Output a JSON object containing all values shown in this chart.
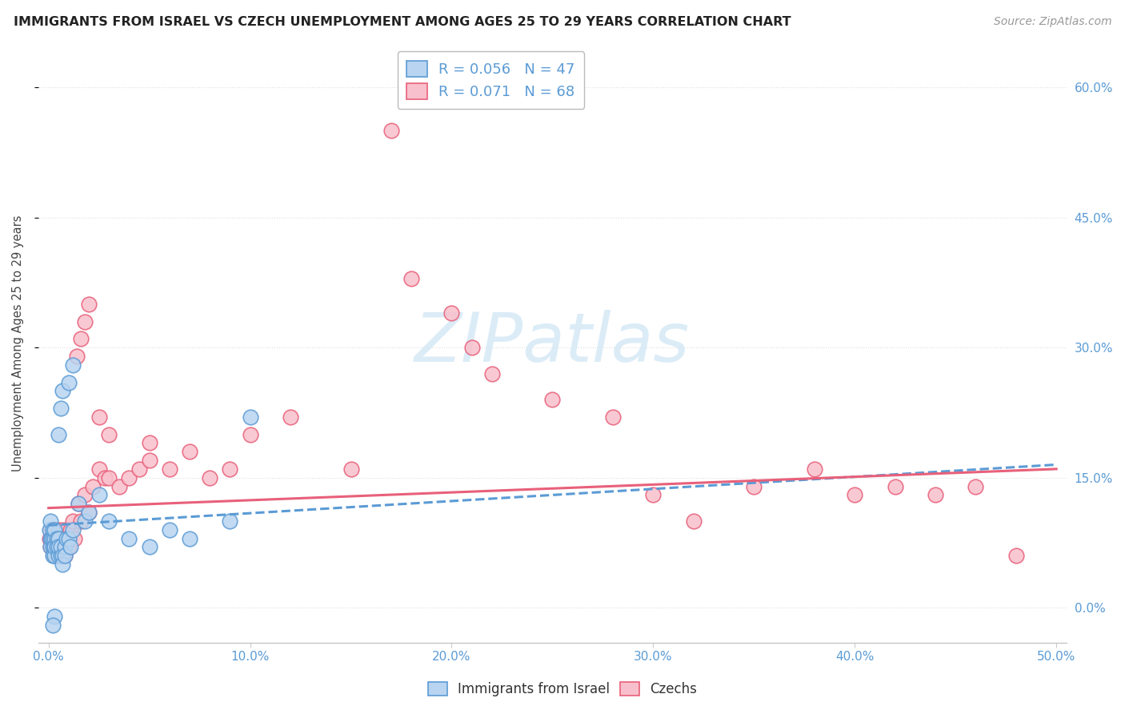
{
  "title": "IMMIGRANTS FROM ISRAEL VS CZECH UNEMPLOYMENT AMONG AGES 25 TO 29 YEARS CORRELATION CHART",
  "source": "Source: ZipAtlas.com",
  "ylabel": "Unemployment Among Ages 25 to 29 years",
  "xlim": [
    -0.005,
    0.505
  ],
  "ylim": [
    -0.04,
    0.65
  ],
  "xtick_vals": [
    0.0,
    0.1,
    0.2,
    0.3,
    0.4,
    0.5
  ],
  "ytick_vals": [
    0.0,
    0.15,
    0.3,
    0.45,
    0.6
  ],
  "blue_face": "#b8d4f0",
  "blue_edge": "#5b9bd5",
  "pink_face": "#f8c0cc",
  "pink_edge": "#e8607a",
  "blue_trend_color": "#5b9bd5",
  "pink_trend_color": "#e8607a",
  "tick_label_color": "#5b9bd5",
  "watermark_color": "#cde5f5",
  "title_color": "#222222",
  "source_color": "#999999",
  "grid_color": "#dedede",
  "legend_edge_color": "#bbbbbb",
  "r_blue": 0.056,
  "n_blue": 47,
  "r_pink": 0.071,
  "n_pink": 68,
  "blue_trend_start_y": 0.095,
  "blue_trend_end_y": 0.165,
  "pink_trend_start_y": 0.115,
  "pink_trend_end_y": 0.16,
  "blue_x": [
    0.0005,
    0.001,
    0.001,
    0.001,
    0.0015,
    0.002,
    0.002,
    0.002,
    0.002,
    0.003,
    0.003,
    0.003,
    0.003,
    0.003,
    0.004,
    0.004,
    0.005,
    0.005,
    0.005,
    0.006,
    0.006,
    0.007,
    0.007,
    0.008,
    0.008,
    0.009,
    0.01,
    0.011,
    0.012,
    0.015,
    0.018,
    0.02,
    0.025,
    0.03,
    0.04,
    0.05,
    0.06,
    0.07,
    0.09,
    0.1,
    0.005,
    0.006,
    0.007,
    0.01,
    0.012,
    0.003,
    0.002
  ],
  "blue_y": [
    0.09,
    0.08,
    0.07,
    0.1,
    0.08,
    0.07,
    0.09,
    0.06,
    0.08,
    0.07,
    0.06,
    0.08,
    0.09,
    0.07,
    0.08,
    0.07,
    0.06,
    0.08,
    0.07,
    0.06,
    0.07,
    0.06,
    0.05,
    0.07,
    0.06,
    0.08,
    0.08,
    0.07,
    0.09,
    0.12,
    0.1,
    0.11,
    0.13,
    0.1,
    0.08,
    0.07,
    0.09,
    0.08,
    0.1,
    0.22,
    0.2,
    0.23,
    0.25,
    0.26,
    0.28,
    -0.01,
    -0.02
  ],
  "pink_x": [
    0.0005,
    0.001,
    0.001,
    0.002,
    0.002,
    0.002,
    0.003,
    0.003,
    0.003,
    0.004,
    0.004,
    0.005,
    0.005,
    0.005,
    0.006,
    0.006,
    0.007,
    0.007,
    0.008,
    0.008,
    0.009,
    0.01,
    0.01,
    0.011,
    0.012,
    0.013,
    0.015,
    0.016,
    0.018,
    0.02,
    0.022,
    0.025,
    0.028,
    0.03,
    0.035,
    0.04,
    0.045,
    0.05,
    0.06,
    0.07,
    0.08,
    0.09,
    0.1,
    0.12,
    0.15,
    0.17,
    0.18,
    0.2,
    0.21,
    0.22,
    0.25,
    0.28,
    0.3,
    0.32,
    0.35,
    0.38,
    0.4,
    0.42,
    0.44,
    0.46,
    0.014,
    0.016,
    0.018,
    0.02,
    0.025,
    0.03,
    0.05,
    0.48
  ],
  "pink_y": [
    0.08,
    0.09,
    0.07,
    0.08,
    0.07,
    0.09,
    0.07,
    0.08,
    0.06,
    0.09,
    0.07,
    0.08,
    0.07,
    0.09,
    0.08,
    0.06,
    0.09,
    0.07,
    0.08,
    0.06,
    0.09,
    0.08,
    0.07,
    0.09,
    0.1,
    0.08,
    0.12,
    0.1,
    0.13,
    0.11,
    0.14,
    0.16,
    0.15,
    0.15,
    0.14,
    0.15,
    0.16,
    0.17,
    0.16,
    0.18,
    0.15,
    0.16,
    0.2,
    0.22,
    0.16,
    0.55,
    0.38,
    0.34,
    0.3,
    0.27,
    0.24,
    0.22,
    0.13,
    0.1,
    0.14,
    0.16,
    0.13,
    0.14,
    0.13,
    0.14,
    0.29,
    0.31,
    0.33,
    0.35,
    0.22,
    0.2,
    0.19,
    0.06
  ]
}
